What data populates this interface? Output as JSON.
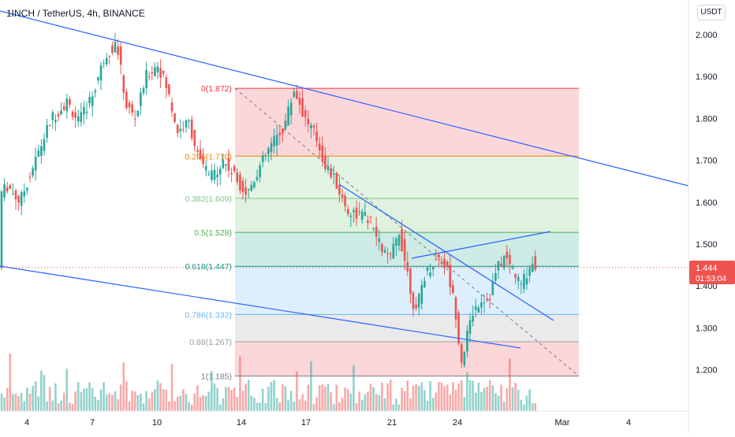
{
  "header": {
    "title": "1INCH / TetherUS, 4h, BINANCE",
    "currency_button": "USDT"
  },
  "price_tag": {
    "price": "1.444",
    "countdown": "01:53:04"
  },
  "colors": {
    "up": "#26a69a",
    "down": "#ef5350",
    "trendline": "#2962ff",
    "fib_0": "#f23645",
    "fib_382": "#81c784",
    "fib_5": "#4caf50",
    "fib_618": "#089981",
    "fib_786": "#64b5f6",
    "fib_1": "#787b86"
  },
  "chart_data": {
    "type": "candlestick",
    "title": "1INCH / TetherUS, 4h, BINANCE",
    "y_axis": {
      "range": [
        1.13,
        2.07
      ],
      "ticks": [
        "2.000",
        "1.900",
        "1.800",
        "1.700",
        "1.600",
        "1.500",
        "1.400",
        "1.300",
        "1.200"
      ]
    },
    "x_axis": {
      "ticks": [
        "4",
        "7",
        "10",
        "14",
        "17",
        "21",
        "24",
        "Mar",
        "4"
      ]
    },
    "last_price": 1.444,
    "fibonacci": [
      {
        "ratio": "0",
        "price": 1.872,
        "label": "0(1.872)"
      },
      {
        "ratio": "0.236",
        "price": 1.71,
        "label": "0.236(1.710)"
      },
      {
        "ratio": "0.382",
        "price": 1.609,
        "label": "0.382(1.609)"
      },
      {
        "ratio": "0.5",
        "price": 1.528,
        "label": "0.5(1.528)"
      },
      {
        "ratio": "0.618",
        "price": 1.447,
        "label": "0.618(1.447)"
      },
      {
        "ratio": "0.786",
        "price": 1.332,
        "label": "0.786(1.332)"
      },
      {
        "ratio": "0.88",
        "price": 1.267,
        "label": "0.88(1.267)"
      },
      {
        "ratio": "1",
        "price": 1.185,
        "label": "1(1.185)"
      }
    ],
    "price_path": [
      [
        0,
        1.62
      ],
      [
        10,
        1.64
      ],
      [
        25,
        1.6
      ],
      [
        45,
        1.7
      ],
      [
        65,
        1.8
      ],
      [
        85,
        1.84
      ],
      [
        100,
        1.79
      ],
      [
        118,
        1.86
      ],
      [
        133,
        1.95
      ],
      [
        148,
        1.98
      ],
      [
        160,
        1.83
      ],
      [
        172,
        1.8
      ],
      [
        185,
        1.9
      ],
      [
        200,
        1.93
      ],
      [
        212,
        1.87
      ],
      [
        225,
        1.77
      ],
      [
        240,
        1.79
      ],
      [
        252,
        1.7
      ],
      [
        268,
        1.66
      ],
      [
        283,
        1.7
      ],
      [
        298,
        1.66
      ],
      [
        313,
        1.62
      ],
      [
        328,
        1.68
      ],
      [
        345,
        1.74
      ],
      [
        360,
        1.78
      ],
      [
        373,
        1.87
      ],
      [
        387,
        1.8
      ],
      [
        400,
        1.76
      ],
      [
        412,
        1.69
      ],
      [
        425,
        1.65
      ],
      [
        440,
        1.58
      ],
      [
        455,
        1.57
      ],
      [
        468,
        1.56
      ],
      [
        481,
        1.5
      ],
      [
        494,
        1.46
      ],
      [
        506,
        1.53
      ],
      [
        517,
        1.43
      ],
      [
        527,
        1.33
      ],
      [
        537,
        1.42
      ],
      [
        547,
        1.45
      ],
      [
        557,
        1.47
      ],
      [
        567,
        1.44
      ],
      [
        577,
        1.35
      ],
      [
        585,
        1.22
      ],
      [
        592,
        1.28
      ],
      [
        600,
        1.34
      ],
      [
        610,
        1.37
      ],
      [
        620,
        1.37
      ],
      [
        630,
        1.44
      ],
      [
        640,
        1.47
      ],
      [
        650,
        1.44
      ],
      [
        660,
        1.4
      ],
      [
        670,
        1.44
      ],
      [
        676,
        1.46
      ],
      [
        680,
        1.444
      ]
    ]
  }
}
